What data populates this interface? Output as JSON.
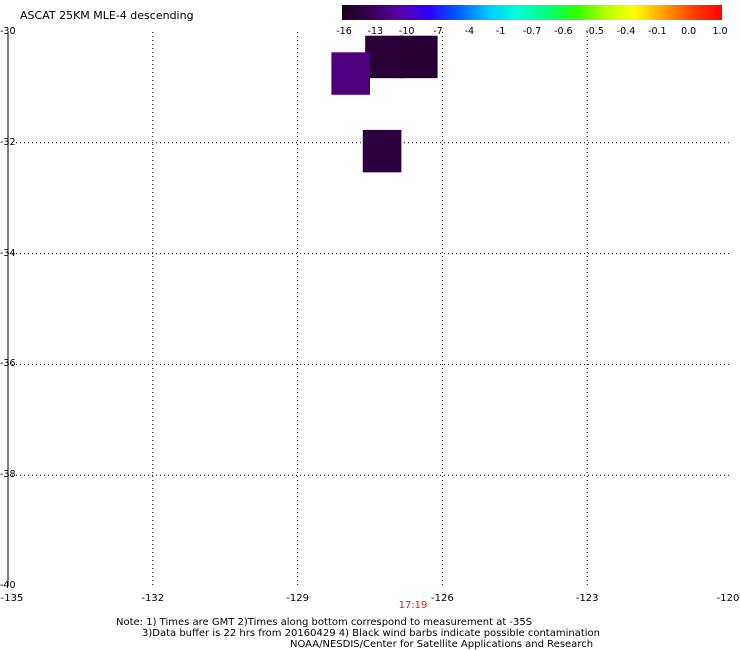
{
  "title": "ASCAT 25KM MLE-4 descending",
  "colorbar": {
    "ticks": [
      "-16",
      "-13",
      "-10",
      "-7",
      "-4",
      "-1",
      "-0.7",
      "-0.6",
      "-0.5",
      "-0.4",
      "-0.1",
      "0.0",
      "1.0"
    ],
    "colors": [
      "#1a0016",
      "#3a005a",
      "#5a00a8",
      "#2a00ff",
      "#0060ff",
      "#00c8ff",
      "#00ffd8",
      "#00ff80",
      "#30ff00",
      "#b0ff00",
      "#ffff00",
      "#ffa000",
      "#ff4000",
      "#ff0000"
    ]
  },
  "map": {
    "lon_ticks": [
      "-135",
      "-132",
      "-129",
      "-126",
      "-123",
      "-120"
    ],
    "lat_ticks": [
      "-30",
      "-32",
      "-34",
      "-36",
      "-38",
      "-40"
    ],
    "time_label": "17:19",
    "cells": [
      {
        "lon": -127.2,
        "lat": -30.45,
        "value": -13,
        "color": "#2a0038"
      },
      {
        "lon": -126.5,
        "lat": -30.45,
        "value": -14,
        "color": "#260034"
      },
      {
        "lon": -127.9,
        "lat": -30.75,
        "value": -12,
        "color": "#4e007c"
      },
      {
        "lon": -127.25,
        "lat": -32.15,
        "value": -14,
        "color": "#2c003e"
      }
    ]
  },
  "notes": {
    "line1": "Note: 1) Times are GMT 2)Times along bottom correspond to measurement at -35S",
    "line2": "3)Data buffer is 22 hrs from 20160429 4) Black wind barbs indicate possible contamination",
    "line3": "NOAA/NESDIS/Center for Satellite Applications and Research"
  }
}
